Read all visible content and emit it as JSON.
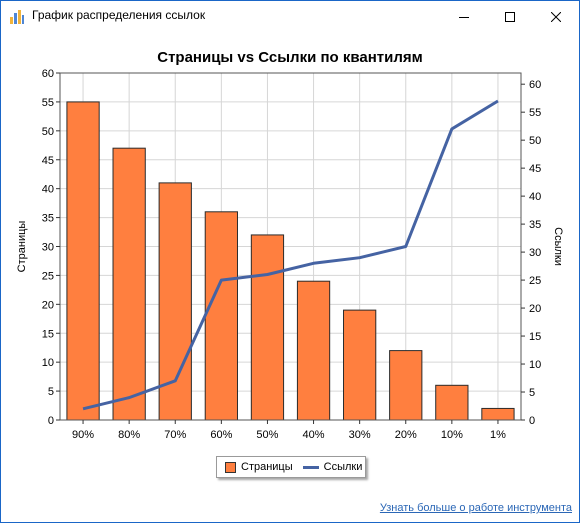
{
  "window": {
    "title": "График распределения ссылок"
  },
  "chart_data": {
    "type": "bar+line",
    "title": "Страницы vs Ссылки по квантилям",
    "categories": [
      "90%",
      "80%",
      "70%",
      "60%",
      "50%",
      "40%",
      "30%",
      "20%",
      "10%",
      "1%"
    ],
    "ylabel_left": "Страницы",
    "ylabel_right": "Ссылки",
    "ylim_left": [
      0,
      60
    ],
    "ylim_right": [
      0,
      62
    ],
    "yticks_left": [
      0,
      5,
      10,
      15,
      20,
      25,
      30,
      35,
      40,
      45,
      50,
      55,
      60
    ],
    "yticks_right": [
      0,
      5,
      10,
      15,
      20,
      25,
      30,
      35,
      40,
      45,
      50,
      55,
      60
    ],
    "grid": true,
    "legend_position": "bottom",
    "series": [
      {
        "name": "Страницы",
        "type": "bar",
        "axis": "left",
        "color": "#ff7f3f",
        "values": [
          55,
          47,
          41,
          36,
          32,
          24,
          19,
          12,
          6,
          2
        ]
      },
      {
        "name": "Ссылки",
        "type": "line",
        "axis": "right",
        "color": "#4563a3",
        "values": [
          2,
          4,
          7,
          25,
          26,
          28,
          29,
          31,
          52,
          57
        ]
      }
    ]
  },
  "footer": {
    "link_text": "Узнать больше о работе инструмента"
  }
}
